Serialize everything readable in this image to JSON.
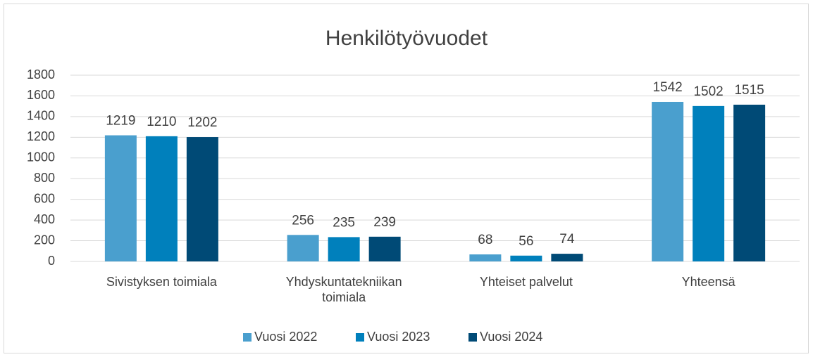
{
  "chart_data": {
    "type": "bar",
    "title": "Henkilötyövuodet",
    "categories": [
      "Sivistyksen toimiala",
      "Yhdyskuntatekniikan toimiala",
      "Yhteiset palvelut",
      "Yhteensä"
    ],
    "series": [
      {
        "name": "Vuosi 2022",
        "color": "#4a9fce",
        "values": [
          1219,
          256,
          68,
          1542
        ]
      },
      {
        "name": "Vuosi 2023",
        "color": "#0080bc",
        "values": [
          1210,
          235,
          56,
          1502
        ]
      },
      {
        "name": "Vuosi 2024",
        "color": "#004a76",
        "values": [
          1202,
          239,
          74,
          1515
        ]
      }
    ],
    "ylim": [
      0,
      1800
    ],
    "yticks": [
      0,
      200,
      400,
      600,
      800,
      1000,
      1200,
      1400,
      1600,
      1800
    ],
    "grid": true,
    "legend": "bottom"
  }
}
